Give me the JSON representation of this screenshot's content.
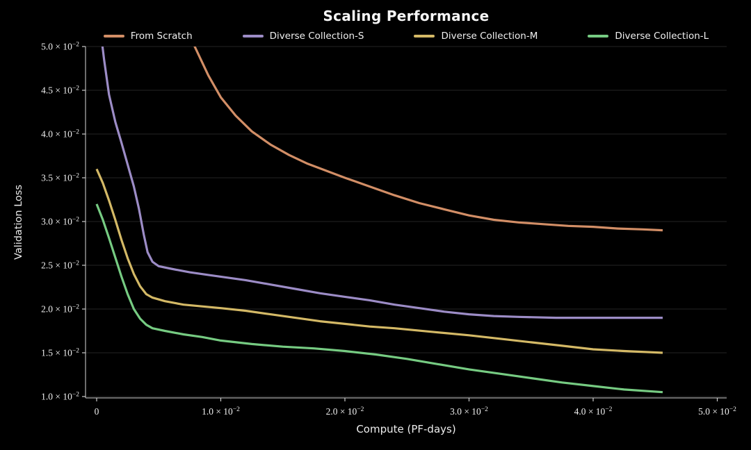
{
  "page": {
    "background": "#000000"
  },
  "style": {
    "text_color": "#f0f0f0",
    "grid_color": "#242424",
    "spine_color": "#a8a8a8",
    "tick_color": "#cccccc"
  },
  "chart_data": {
    "type": "line",
    "title": "Scaling Performance",
    "xlabel": "Compute (PF-days)",
    "ylabel": "Validation Loss",
    "grid": "horizontal-only",
    "legend_position": "top-center",
    "xlim": [
      -0.000896,
      0.050756
    ],
    "ylim": [
      0.0098413,
      0.05
    ],
    "x_ticks": {
      "values": [
        0,
        0.01,
        0.02,
        0.03,
        0.04,
        0.05
      ],
      "labels": [
        "0",
        "1.0 × 10⁻²",
        "2.0 × 10⁻²",
        "3.0 × 10⁻²",
        "4.0 × 10⁻²",
        "5.0 × 10⁻²"
      ]
    },
    "y_ticks": {
      "values": [
        0.01,
        0.015,
        0.02,
        0.025,
        0.03,
        0.035,
        0.04,
        0.045,
        0.05
      ],
      "labels": [
        "1.0 × 10⁻²",
        "1.5 × 10⁻²",
        "2.0 × 10⁻²",
        "2.5 × 10⁻²",
        "3.0 × 10⁻²",
        "3.5 × 10⁻²",
        "4.0 × 10⁻²",
        "4.5 × 10⁻²",
        "5.0 × 10⁻²"
      ]
    },
    "series": [
      {
        "name": "From Scratch",
        "color": "#d28e66",
        "points": [
          [
            0.007,
            0.0535
          ],
          [
            0.0079,
            0.05
          ],
          [
            0.009,
            0.0467
          ],
          [
            0.01,
            0.0442
          ],
          [
            0.0112,
            0.0421
          ],
          [
            0.0125,
            0.0403
          ],
          [
            0.014,
            0.0388
          ],
          [
            0.0155,
            0.0376
          ],
          [
            0.017,
            0.0366
          ],
          [
            0.0185,
            0.0358
          ],
          [
            0.02,
            0.035
          ],
          [
            0.022,
            0.034
          ],
          [
            0.024,
            0.033
          ],
          [
            0.026,
            0.0321
          ],
          [
            0.028,
            0.0314
          ],
          [
            0.03,
            0.0307
          ],
          [
            0.032,
            0.0302
          ],
          [
            0.034,
            0.0299
          ],
          [
            0.036,
            0.0297
          ],
          [
            0.038,
            0.0295
          ],
          [
            0.04,
            0.0294
          ],
          [
            0.042,
            0.0292
          ],
          [
            0.044,
            0.0291
          ],
          [
            0.0456,
            0.029
          ]
        ]
      },
      {
        "name": "Diverse Collection-S",
        "color": "#9c8cc6",
        "points": [
          [
            0.0,
            0.056
          ],
          [
            0.0003,
            0.052
          ],
          [
            0.0006,
            0.0485
          ],
          [
            0.001,
            0.0445
          ],
          [
            0.0015,
            0.0414
          ],
          [
            0.002,
            0.039
          ],
          [
            0.0025,
            0.0365
          ],
          [
            0.003,
            0.034
          ],
          [
            0.0034,
            0.0315
          ],
          [
            0.0038,
            0.0285
          ],
          [
            0.0041,
            0.0265
          ],
          [
            0.0045,
            0.0254
          ],
          [
            0.005,
            0.0249
          ],
          [
            0.006,
            0.0246
          ],
          [
            0.0075,
            0.0242
          ],
          [
            0.009,
            0.0239
          ],
          [
            0.01,
            0.0237
          ],
          [
            0.012,
            0.0233
          ],
          [
            0.014,
            0.0228
          ],
          [
            0.016,
            0.0223
          ],
          [
            0.018,
            0.0218
          ],
          [
            0.02,
            0.0214
          ],
          [
            0.022,
            0.021
          ],
          [
            0.024,
            0.0205
          ],
          [
            0.026,
            0.0201
          ],
          [
            0.028,
            0.0197
          ],
          [
            0.03,
            0.0194
          ],
          [
            0.032,
            0.0192
          ],
          [
            0.034,
            0.0191
          ],
          [
            0.037,
            0.019
          ],
          [
            0.041,
            0.019
          ],
          [
            0.0456,
            0.019
          ]
        ]
      },
      {
        "name": "Diverse Collection-M",
        "color": "#d4b966",
        "points": [
          [
            0.0,
            0.036
          ],
          [
            0.0005,
            0.0344
          ],
          [
            0.001,
            0.0324
          ],
          [
            0.0015,
            0.0302
          ],
          [
            0.002,
            0.0279
          ],
          [
            0.0025,
            0.0258
          ],
          [
            0.003,
            0.024
          ],
          [
            0.0035,
            0.0226
          ],
          [
            0.004,
            0.0217
          ],
          [
            0.0045,
            0.0213
          ],
          [
            0.0055,
            0.0209
          ],
          [
            0.007,
            0.0205
          ],
          [
            0.0085,
            0.0203
          ],
          [
            0.01,
            0.0201
          ],
          [
            0.012,
            0.0198
          ],
          [
            0.014,
            0.0194
          ],
          [
            0.016,
            0.019
          ],
          [
            0.018,
            0.0186
          ],
          [
            0.02,
            0.0183
          ],
          [
            0.022,
            0.018
          ],
          [
            0.024,
            0.0178
          ],
          [
            0.027,
            0.0174
          ],
          [
            0.03,
            0.017
          ],
          [
            0.0325,
            0.0166
          ],
          [
            0.035,
            0.0162
          ],
          [
            0.0375,
            0.0158
          ],
          [
            0.04,
            0.0154
          ],
          [
            0.0425,
            0.0152
          ],
          [
            0.0456,
            0.015
          ]
        ]
      },
      {
        "name": "Diverse Collection-L",
        "color": "#76cb82",
        "points": [
          [
            0.0,
            0.032
          ],
          [
            0.0005,
            0.0302
          ],
          [
            0.001,
            0.0281
          ],
          [
            0.0015,
            0.0259
          ],
          [
            0.002,
            0.0237
          ],
          [
            0.0025,
            0.0217
          ],
          [
            0.003,
            0.02
          ],
          [
            0.0035,
            0.0189
          ],
          [
            0.004,
            0.0182
          ],
          [
            0.0045,
            0.0178
          ],
          [
            0.0055,
            0.0175
          ],
          [
            0.007,
            0.0171
          ],
          [
            0.0085,
            0.0168
          ],
          [
            0.01,
            0.0164
          ],
          [
            0.0125,
            0.016
          ],
          [
            0.015,
            0.0157
          ],
          [
            0.0175,
            0.0155
          ],
          [
            0.02,
            0.0152
          ],
          [
            0.0225,
            0.0148
          ],
          [
            0.025,
            0.0143
          ],
          [
            0.0275,
            0.0137
          ],
          [
            0.03,
            0.0131
          ],
          [
            0.0325,
            0.0126
          ],
          [
            0.035,
            0.0121
          ],
          [
            0.0375,
            0.0116
          ],
          [
            0.04,
            0.0112
          ],
          [
            0.0425,
            0.0108
          ],
          [
            0.0456,
            0.0105
          ]
        ]
      }
    ]
  }
}
